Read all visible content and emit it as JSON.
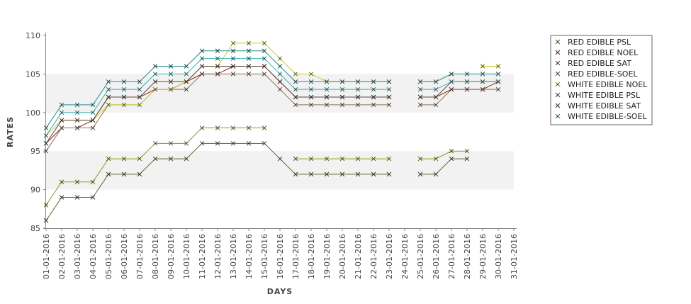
{
  "chart_data": {
    "type": "line",
    "title": "",
    "xlabel": "DAYS",
    "ylabel": "RATES",
    "ylim": [
      85,
      110
    ],
    "yticks": [
      85,
      90,
      95,
      100,
      105,
      110
    ],
    "grid": "alternating horizontal bands",
    "legend_position": "top-right",
    "categories": [
      "01-01-2016",
      "02-01-2016",
      "03-01-2016",
      "04-01-2016",
      "05-01-2016",
      "06-01-2016",
      "07-01-2016",
      "08-01-2016",
      "09-01-2016",
      "10-01-2016",
      "11-01-2016",
      "12-01-2016",
      "13-01-2016",
      "14-01-2016",
      "15-01-2016",
      "16-01-2016",
      "17-01-2016",
      "18-01-2016",
      "19-01-2016",
      "20-01-2016",
      "21-01-2016",
      "22-01-2016",
      "23-01-2016",
      "24-01-2016",
      "25-01-2016",
      "26-01-2016",
      "27-01-2016",
      "28-01-2016",
      "29-01-2016",
      "30-01-2016",
      "31-01-2016"
    ],
    "series": [
      {
        "name": "RED EDIBLE  PSL",
        "color": "#7f9f1f",
        "values": [
          88,
          91,
          91,
          91,
          94,
          94,
          94,
          96,
          96,
          96,
          98,
          98,
          98,
          98,
          98,
          null,
          94,
          94,
          94,
          94,
          94,
          94,
          94,
          null,
          94,
          94,
          95,
          95,
          null,
          null,
          null
        ]
      },
      {
        "name": "RED EDIBLE NOEL",
        "color": "#8b1a1a",
        "values": [
          96,
          98,
          98,
          99,
          102,
          102,
          102,
          103,
          103,
          104,
          105,
          105,
          106,
          106,
          106,
          104,
          102,
          102,
          102,
          102,
          102,
          102,
          102,
          null,
          102,
          102,
          103,
          103,
          103,
          104,
          null
        ]
      },
      {
        "name": "RED EDIBLE SAT",
        "color": "#556b2f",
        "values": [
          86,
          89,
          89,
          89,
          92,
          92,
          92,
          94,
          94,
          94,
          96,
          96,
          96,
          96,
          96,
          94,
          92,
          92,
          92,
          92,
          92,
          92,
          92,
          null,
          92,
          92,
          94,
          94,
          null,
          null,
          null
        ]
      },
      {
        "name": "RED EDIBLE-SOEL",
        "color": "#8b7355",
        "values": [
          95,
          98,
          98,
          98,
          101,
          101,
          101,
          103,
          103,
          103,
          105,
          105,
          105,
          105,
          105,
          103,
          101,
          101,
          101,
          101,
          101,
          101,
          101,
          null,
          101,
          101,
          103,
          103,
          103,
          103,
          null
        ]
      },
      {
        "name": "WHITE EDIBLE NOEL",
        "color": "#cccc33",
        "values": [
          97,
          99,
          99,
          99,
          101,
          101,
          101,
          103,
          103,
          104,
          106,
          106,
          109,
          109,
          109,
          107,
          105,
          105,
          104,
          104,
          104,
          104,
          104,
          null,
          104,
          104,
          105,
          null,
          106,
          106,
          null
        ]
      },
      {
        "name": "WHITE EDIBLE PSL",
        "color": "#2e8b8b",
        "values": [
          98,
          101,
          101,
          101,
          104,
          104,
          104,
          106,
          106,
          106,
          108,
          108,
          108,
          108,
          108,
          106,
          104,
          104,
          104,
          104,
          104,
          104,
          104,
          null,
          104,
          104,
          105,
          105,
          105,
          105,
          null
        ]
      },
      {
        "name": "WHITE EDIBLE SAT",
        "color": "#5a4a3a",
        "values": [
          96,
          99,
          99,
          99,
          102,
          102,
          102,
          104,
          104,
          104,
          106,
          106,
          106,
          106,
          106,
          104,
          102,
          102,
          102,
          102,
          102,
          102,
          102,
          null,
          102,
          102,
          104,
          104,
          104,
          104,
          null
        ]
      },
      {
        "name": "WHITE EDIBLE-SOEL",
        "color": "#40b0b0",
        "values": [
          97,
          100,
          100,
          100,
          103,
          103,
          103,
          105,
          105,
          105,
          107,
          107,
          107,
          107,
          107,
          105,
          103,
          103,
          103,
          103,
          103,
          103,
          103,
          null,
          103,
          103,
          104,
          104,
          104,
          104,
          null
        ]
      }
    ]
  }
}
